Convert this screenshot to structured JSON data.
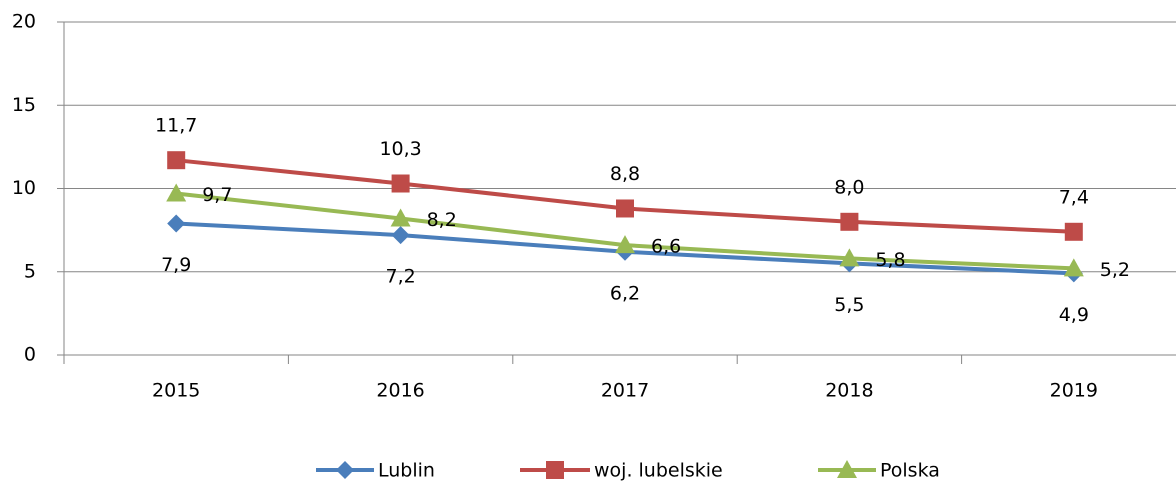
{
  "chart_data": {
    "type": "line",
    "categories": [
      "2015",
      "2016",
      "2017",
      "2018",
      "2019"
    ],
    "series": [
      {
        "name": "Lublin",
        "color": "#4a7ebb",
        "marker": "diamond",
        "values": [
          7.9,
          7.2,
          6.2,
          5.5,
          4.9
        ],
        "value_labels": [
          "7,9",
          "7,2",
          "6,2",
          "5,5",
          "4,9"
        ]
      },
      {
        "name": "woj. lubelskie",
        "color": "#be4b48",
        "marker": "square",
        "values": [
          11.7,
          10.3,
          8.8,
          8.0,
          7.4
        ],
        "value_labels": [
          "11,7",
          "10,3",
          "8,8",
          "8,0",
          "7,4"
        ]
      },
      {
        "name": "Polska",
        "color": "#98b954",
        "marker": "triangle",
        "values": [
          9.7,
          8.2,
          6.6,
          5.8,
          5.2
        ],
        "value_labels": [
          "9,7",
          "8,2",
          "6,6",
          "5,8",
          "5,2"
        ]
      }
    ],
    "ylim": [
      0,
      20
    ],
    "yticks": [
      0,
      5,
      10,
      15,
      20
    ],
    "grid": true,
    "legend": "bottom"
  }
}
